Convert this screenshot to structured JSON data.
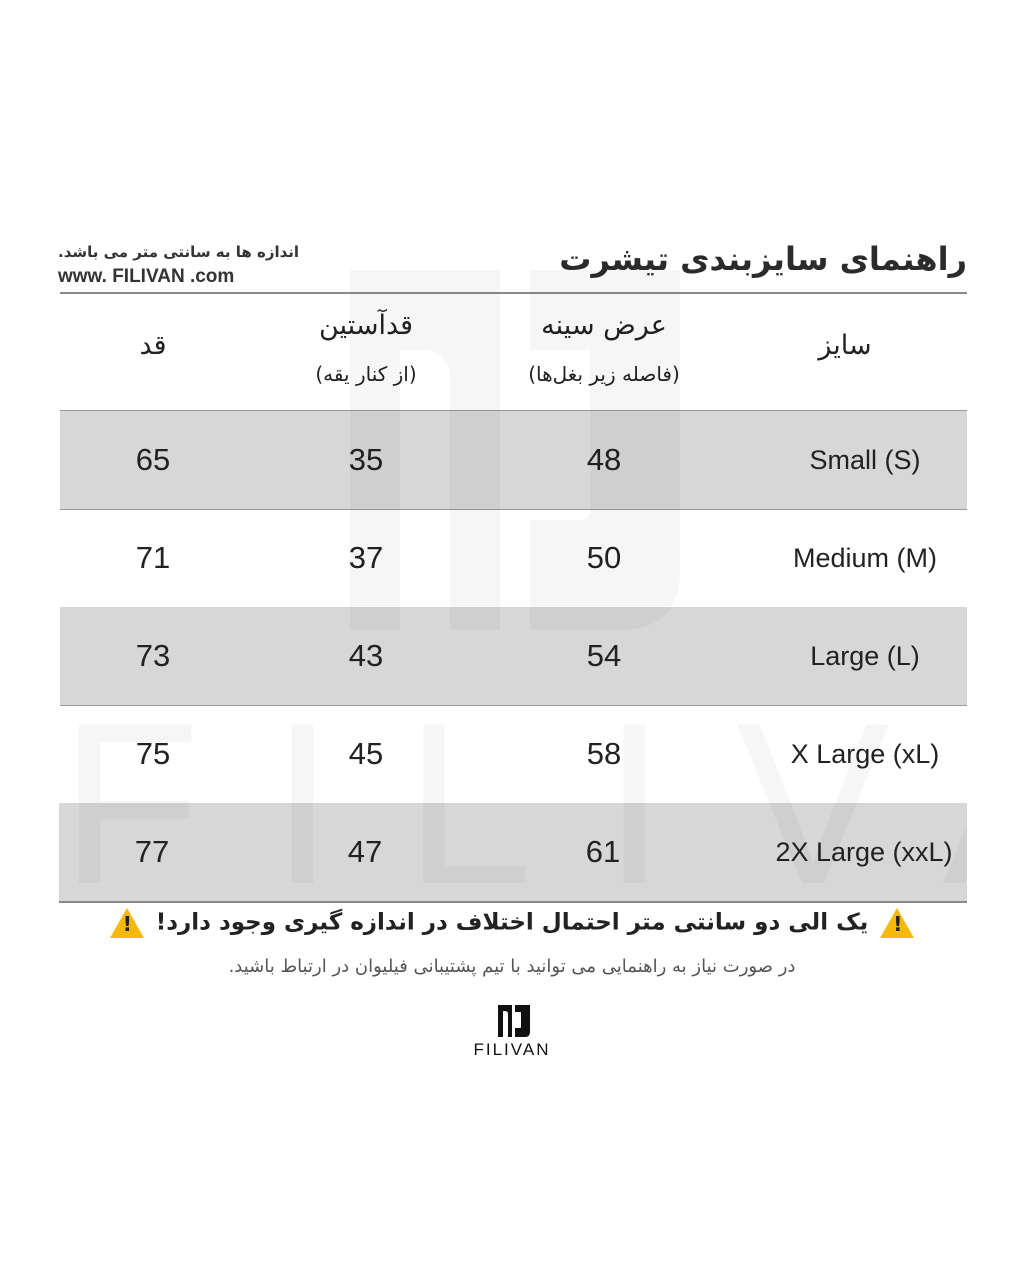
{
  "header": {
    "title": "راهنمای سایزبندی تیشرت",
    "note": "اندازه ها به سانتی متر می باشد.",
    "website": "www. FILIVAN .com"
  },
  "table": {
    "columns": [
      {
        "label": "سایز",
        "sub": ""
      },
      {
        "label": "عرض سینه",
        "sub": "(فاصله زیر بغل‌ها)"
      },
      {
        "label": "قدآستین",
        "sub": "(از کنار یقه)"
      },
      {
        "label": "قد",
        "sub": ""
      }
    ],
    "rows": [
      {
        "size": "Small  (S)",
        "chest": "48",
        "sleeve": "35",
        "length": "65"
      },
      {
        "size": "Medium (M)",
        "chest": "50",
        "sleeve": "37",
        "length": "71"
      },
      {
        "size": "Large (L)",
        "chest": "54",
        "sleeve": "43",
        "length": "73"
      },
      {
        "size": "X Large (xL)",
        "chest": "58",
        "sleeve": "45",
        "length": "75"
      },
      {
        "size": "2X Large (xxL)",
        "chest": "61",
        "sleeve": "47",
        "length": "77"
      }
    ],
    "row_colors": [
      "#d7d7d7",
      "#ffffff"
    ]
  },
  "footer": {
    "warning": "یک الی دو سانتی متر احتمال اختلاف در اندازه گیری وجود دارد!",
    "warning_icon": "warning-triangle-icon",
    "warning_color": "#f5b90a",
    "support": "در صورت نیاز به راهنمایی می توانید با تیم پشتیبانی فیلیوان در ارتباط باشید.",
    "brand": "FILIVAN",
    "watermark": "FILIVAN"
  }
}
